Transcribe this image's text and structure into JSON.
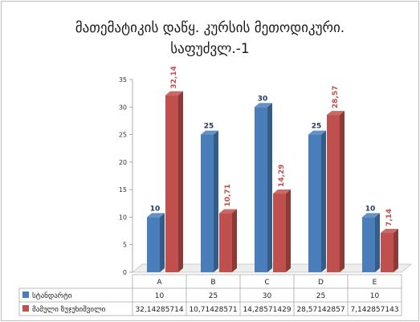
{
  "chart_data": {
    "type": "bar",
    "title_line1": "მათემატიკის დაწყ. კურსის მეთოდიკური.",
    "title_line2": "საფუძვლ.-1",
    "categories": [
      "A",
      "B",
      "C",
      "D",
      "E"
    ],
    "ylim": [
      0,
      35
    ],
    "yticks": [
      "0",
      "5",
      "10",
      "15",
      "20",
      "25",
      "30",
      "35"
    ],
    "grid": false,
    "legend": "data-table",
    "series": [
      {
        "name": "სტანდარტი",
        "values": [
          10,
          25,
          30,
          25,
          10
        ],
        "labels": [
          "10",
          "25",
          "30",
          "25",
          "10"
        ],
        "table_values": [
          "10",
          "25",
          "30",
          "25",
          "10"
        ],
        "color": "#4a7ebb",
        "label_color": "#1f3864"
      },
      {
        "name": "მამული ზუჯუხიშვილი",
        "values": [
          32.14285714,
          10.71428571,
          14.28571429,
          28.57142857,
          7.142857143
        ],
        "labels": [
          "32,14",
          "10,71",
          "14,29",
          "28,57",
          "7,14"
        ],
        "table_values": [
          "32,14285714",
          "10,71428571",
          "14,28571429",
          "28,57142857",
          "7,142857143"
        ],
        "color": "#c0504d",
        "label_color": "#c0504d"
      }
    ]
  }
}
